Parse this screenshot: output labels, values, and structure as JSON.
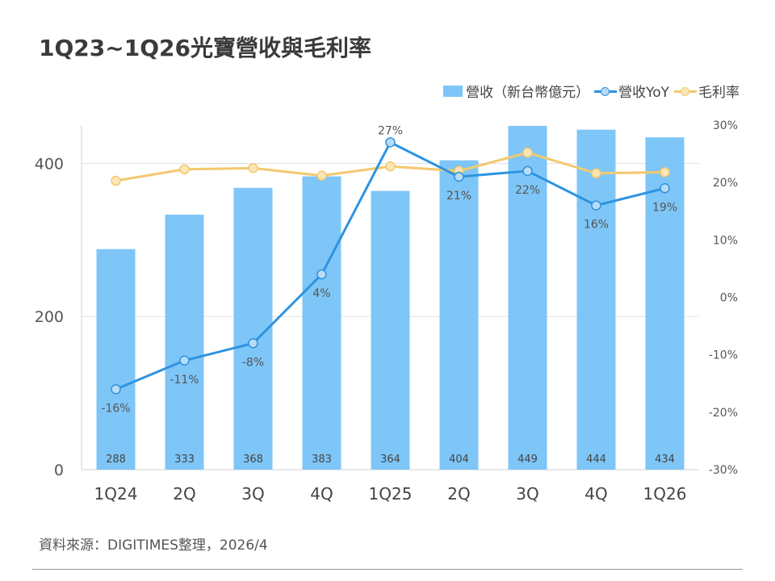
{
  "title": "1Q23~1Q26光寶營收與毛利率",
  "source": "資料來源：DIGITIMES整理，2026/4",
  "legend": {
    "revenue": "營收（新台幣億元）",
    "yoy": "營收YoY",
    "margin": "毛利率"
  },
  "colors": {
    "bar": "#7ec6f7",
    "yoy_line": "#2e93e0",
    "yoy_marker": "#b9dcf5",
    "margin_line": "#f4c86e",
    "margin_marker": "#fbe6b6"
  },
  "chart_data": {
    "type": "bar+line",
    "categories": [
      "1Q24",
      "2Q",
      "3Q",
      "4Q",
      "1Q25",
      "2Q",
      "3Q",
      "4Q",
      "1Q26"
    ],
    "series": [
      {
        "name": "營收（新台幣億元）",
        "type": "bar",
        "axis": "left",
        "values": [
          288,
          333,
          368,
          383,
          364,
          404,
          449,
          444,
          434
        ],
        "labels": [
          "288",
          "333",
          "368",
          "383",
          "364",
          "404",
          "449",
          "444",
          "434"
        ]
      },
      {
        "name": "營收YoY",
        "type": "line",
        "axis": "right",
        "values": [
          -16,
          -11,
          -8,
          4,
          27,
          21,
          22,
          16,
          19
        ],
        "labels": [
          "-16%",
          "-11%",
          "-8%",
          "4%",
          "27%",
          "21%",
          "22%",
          "16%",
          "19%"
        ]
      },
      {
        "name": "毛利率",
        "type": "line",
        "axis": "right",
        "values": [
          20.3,
          22.3,
          22.5,
          21.2,
          22.8,
          22.0,
          25.2,
          21.6,
          21.8
        ]
      }
    ],
    "left_axis": {
      "ylim": [
        0,
        450
      ],
      "ticks": [
        0,
        200,
        400
      ],
      "tick_labels": [
        "0",
        "200",
        "400"
      ]
    },
    "right_axis": {
      "ylim": [
        -30,
        30
      ],
      "ticks": [
        -30,
        -20,
        -10,
        0,
        10,
        20,
        30
      ],
      "tick_labels": [
        "-30%",
        "-20%",
        "-10%",
        "0%",
        "10%",
        "20%",
        "30%"
      ]
    },
    "grid": "horizontal",
    "legend_position": "top-right"
  }
}
